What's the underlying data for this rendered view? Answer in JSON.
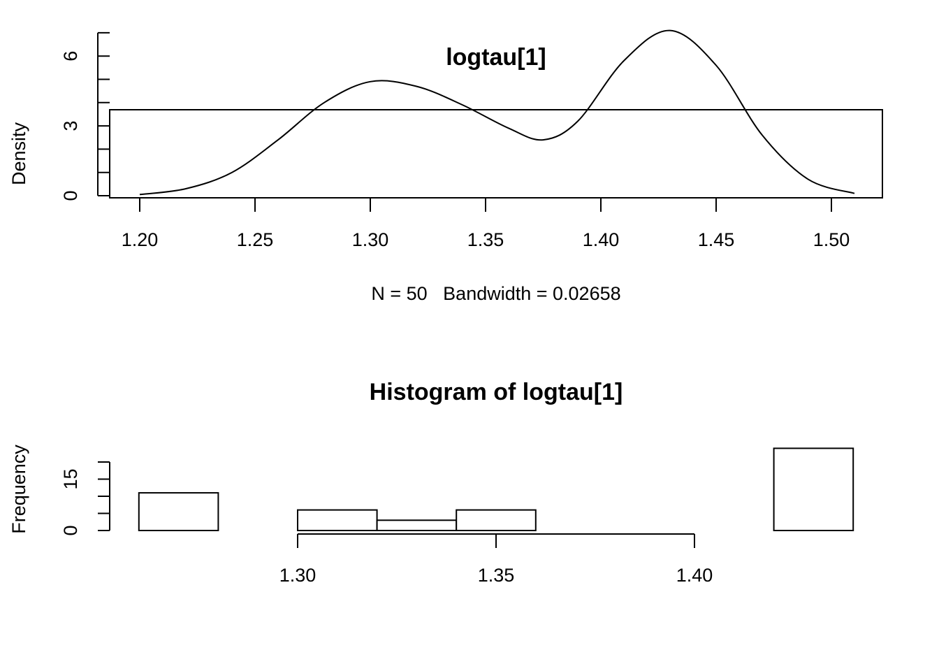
{
  "chart_data": [
    {
      "type": "line",
      "title": "logtau[1]",
      "xlabel": "N = 50   Bandwidth = 0.02658",
      "ylabel": "Density",
      "xlim": [
        1.2,
        1.51
      ],
      "ylim": [
        0,
        7.3
      ],
      "x_ticks": [
        "1.20",
        "1.25",
        "1.30",
        "1.35",
        "1.40",
        "1.45",
        "1.50"
      ],
      "y_ticks": [
        "0",
        "3",
        "6"
      ],
      "grid": false,
      "series": [
        {
          "x": [
            1.2,
            1.22,
            1.24,
            1.26,
            1.28,
            1.3,
            1.32,
            1.34,
            1.36,
            1.375,
            1.39,
            1.41,
            1.43,
            1.45,
            1.47,
            1.49,
            1.51
          ],
          "y": [
            0.05,
            0.3,
            1.0,
            2.4,
            4.0,
            4.9,
            4.7,
            3.9,
            2.9,
            2.4,
            3.2,
            5.8,
            7.1,
            5.6,
            2.6,
            0.7,
            0.1
          ]
        }
      ]
    },
    {
      "type": "bar",
      "title": "Histogram of logtau[1]",
      "xlabel": "",
      "ylabel": "Frequency",
      "x_ticks": [
        "1.30",
        "1.35",
        "1.40"
      ],
      "y_ticks": [
        "0",
        "15"
      ],
      "bin_edges": [
        1.26,
        1.28,
        1.3,
        1.32,
        1.34,
        1.36,
        1.38,
        1.4,
        1.42,
        1.44
      ],
      "values": [
        11,
        0,
        6,
        3,
        6,
        0,
        0,
        0,
        24
      ],
      "ylim": [
        0,
        20
      ]
    }
  ]
}
